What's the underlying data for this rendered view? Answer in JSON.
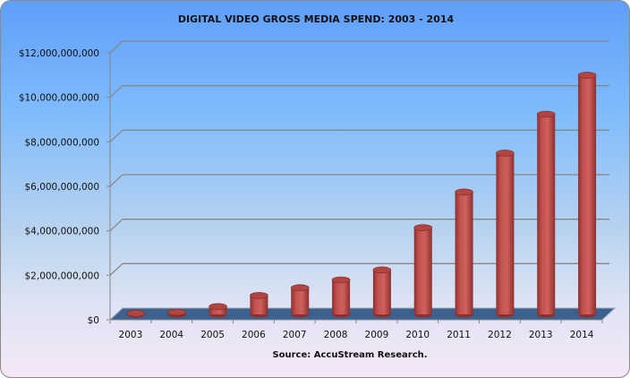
{
  "chart_data": {
    "type": "bar",
    "title": "DIGITAL VIDEO GROSS MEDIA SPEND: 2003  - 2014",
    "xlabel": "Source: AccuStream  Research.",
    "ylabel": "",
    "ylim": [
      0,
      12000000000
    ],
    "yticks": [
      "$0",
      "$2,000,000,000",
      "$4,000,000,000",
      "$6,000,000,000",
      "$8,000,000,000",
      "$10,000,000,000",
      "$12,000,000,000"
    ],
    "categories": [
      "2003",
      "2004",
      "2005",
      "2006",
      "2007",
      "2008",
      "2009",
      "2010",
      "2011",
      "2012",
      "2013",
      "2014"
    ],
    "values": [
      50000000,
      100000000,
      350000000,
      850000000,
      1200000000,
      1550000000,
      2000000000,
      3900000000,
      5500000000,
      7250000000,
      9000000000,
      10750000000
    ],
    "grid": true,
    "legend": "none",
    "colors": {
      "bar": "#c0504d",
      "bar_dark": "#8c2f2d",
      "floor": "#3c618f",
      "grid": "#868686"
    }
  }
}
